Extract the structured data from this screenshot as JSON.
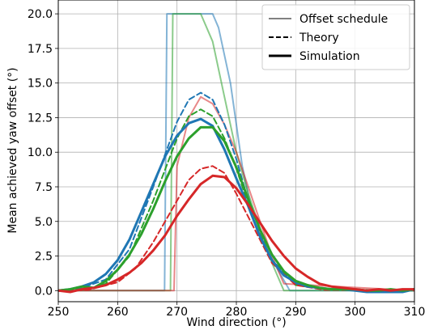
{
  "chart_data": {
    "type": "line",
    "title": "",
    "xlabel": "Wind direction (°)",
    "ylabel": "Mean achieved yaw offset (°)",
    "xlim": [
      250,
      310
    ],
    "ylim": [
      -0.8,
      21.0
    ],
    "xticks": [
      250,
      260,
      270,
      280,
      290,
      300,
      310
    ],
    "yticks": [
      0.0,
      2.5,
      5.0,
      7.5,
      10.0,
      12.5,
      15.0,
      17.5,
      20.0
    ],
    "grid": true,
    "legend_position": "top-right",
    "legend": [
      {
        "label": "Offset schedule",
        "style": "thin"
      },
      {
        "label": "Theory",
        "style": "dashed"
      },
      {
        "label": "Simulation",
        "style": "thick"
      }
    ],
    "series": [
      {
        "group": "Offset schedule",
        "color": "#1f77b4",
        "x": [
          250,
          267.9,
          268.3,
          276,
          277,
          279,
          281,
          283,
          285,
          287,
          289,
          310
        ],
        "y": [
          0,
          0,
          20,
          20,
          19,
          15,
          9,
          5,
          3,
          1.5,
          0,
          0
        ]
      },
      {
        "group": "Offset schedule",
        "color": "#2ca02c",
        "x": [
          250,
          268.9,
          269.3,
          274,
          276,
          278,
          280,
          282,
          284,
          286,
          288,
          310
        ],
        "y": [
          0,
          0,
          20,
          20,
          18,
          14,
          10,
          7,
          4.5,
          2,
          0,
          0
        ]
      },
      {
        "group": "Offset schedule",
        "color": "#d62728",
        "x": [
          250,
          269.5,
          270,
          272,
          274,
          276,
          278,
          280,
          282,
          284,
          286,
          288,
          310
        ],
        "y": [
          0,
          0,
          9,
          12.5,
          14,
          13.5,
          12,
          10,
          7.5,
          5,
          2.5,
          0.5,
          0
        ]
      },
      {
        "group": "Theory",
        "color": "#1f77b4",
        "x": [
          250,
          254,
          258,
          262,
          266,
          270,
          272,
          274,
          276,
          278,
          280,
          283,
          286,
          290,
          295,
          310
        ],
        "y": [
          0,
          0.2,
          0.8,
          3,
          7.5,
          12.2,
          13.8,
          14.3,
          13.8,
          12,
          9.5,
          5,
          2.2,
          0.5,
          0.1,
          0
        ]
      },
      {
        "group": "Theory",
        "color": "#2ca02c",
        "x": [
          250,
          255,
          258,
          262,
          266,
          270,
          272,
          274,
          276,
          278,
          280,
          283,
          286,
          290,
          295,
          310
        ],
        "y": [
          0,
          0.1,
          0.5,
          2.5,
          6.5,
          11,
          12.6,
          13.1,
          12.6,
          11,
          8.8,
          5,
          2.2,
          0.4,
          0.1,
          0
        ]
      },
      {
        "group": "Theory",
        "color": "#d62728",
        "x": [
          250,
          255,
          260,
          263,
          266,
          270,
          272,
          274,
          276,
          278,
          280,
          283,
          286,
          290,
          295,
          310
        ],
        "y": [
          0,
          0.05,
          0.6,
          1.6,
          3.5,
          6.5,
          8,
          8.8,
          9,
          8.5,
          7,
          4.5,
          2,
          0.4,
          0.05,
          0
        ]
      },
      {
        "group": "Simulation",
        "color": "#1f77b4",
        "x": [
          250,
          252,
          254,
          256,
          258,
          260,
          262,
          264,
          266,
          268,
          270,
          272,
          274,
          276,
          278,
          280,
          282,
          284,
          286,
          288,
          290,
          292,
          294,
          296,
          298,
          300,
          302,
          304,
          306,
          308,
          310
        ],
        "y": [
          0,
          0.1,
          0.3,
          0.6,
          1.2,
          2.2,
          3.7,
          5.7,
          7.7,
          9.7,
          11.2,
          12.1,
          12.4,
          11.9,
          10.2,
          8.1,
          6.1,
          3.9,
          2.2,
          1.1,
          0.6,
          0.3,
          0.2,
          0.1,
          0.1,
          0.0,
          -0.1,
          -0.1,
          -0.1,
          -0.1,
          0.1
        ]
      },
      {
        "group": "Simulation",
        "color": "#2ca02c",
        "x": [
          250,
          252,
          254,
          256,
          258,
          260,
          262,
          264,
          266,
          268,
          270,
          272,
          274,
          276,
          278,
          280,
          282,
          284,
          286,
          288,
          290,
          292,
          294,
          296,
          298,
          300,
          302,
          304,
          306,
          308,
          310
        ],
        "y": [
          0,
          0.1,
          0.3,
          0.2,
          0.7,
          1.5,
          2.6,
          4.1,
          5.9,
          7.9,
          9.7,
          11.0,
          11.8,
          11.8,
          10.8,
          8.9,
          6.6,
          4.4,
          2.6,
          1.4,
          0.7,
          0.4,
          0.2,
          0.1,
          0.1,
          0.1,
          0.0,
          0.0,
          0.1,
          0.0,
          0.1
        ]
      },
      {
        "group": "Simulation",
        "color": "#d62728",
        "x": [
          250,
          252,
          254,
          256,
          258,
          260,
          262,
          264,
          266,
          268,
          270,
          272,
          274,
          276,
          278,
          280,
          282,
          284,
          286,
          288,
          290,
          292,
          294,
          296,
          298,
          300,
          302,
          304,
          306,
          308,
          310
        ],
        "y": [
          0,
          -0.1,
          0.1,
          0.2,
          0.4,
          0.8,
          1.3,
          2.0,
          2.9,
          4.0,
          5.4,
          6.6,
          7.7,
          8.3,
          8.2,
          7.4,
          6.2,
          4.9,
          3.6,
          2.5,
          1.6,
          1.0,
          0.5,
          0.3,
          0.2,
          0.1,
          0.0,
          0.1,
          0.0,
          0.1,
          0.1
        ]
      }
    ]
  }
}
